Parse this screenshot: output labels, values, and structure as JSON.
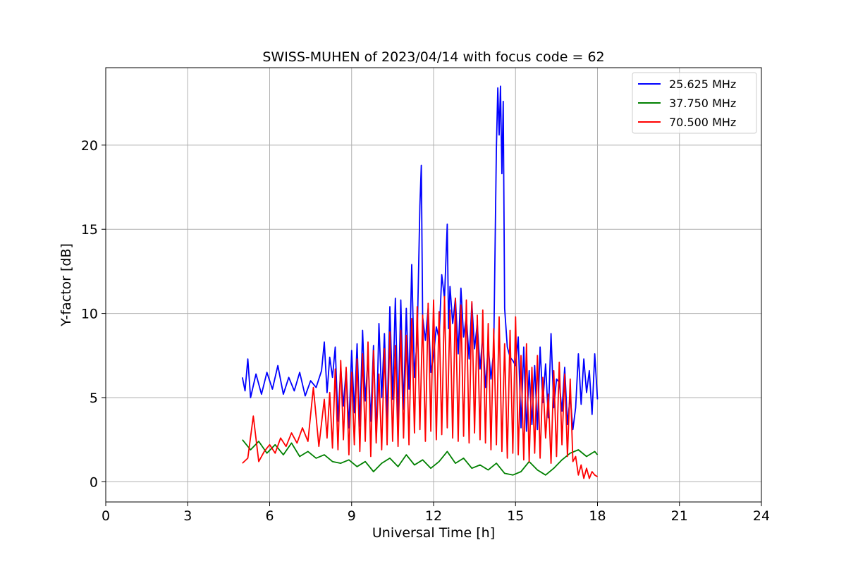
{
  "chart_data": {
    "type": "line",
    "title": "SWISS-MUHEN of 2023/04/14 with focus code = 62",
    "xlabel": "Universal Time [h]",
    "ylabel": "Y-factor [dB]",
    "xlim": [
      0,
      24
    ],
    "ylim": [
      -1.2,
      24.6
    ],
    "x_ticks": [
      0,
      3,
      6,
      9,
      12,
      15,
      18,
      21,
      24
    ],
    "y_ticks": [
      0,
      5,
      10,
      15,
      20
    ],
    "grid": true,
    "legend_position": "top-right",
    "series": [
      {
        "name": "25.625 MHz",
        "color": "#0000ff",
        "x": [
          5.0,
          5.1,
          5.2,
          5.3,
          5.5,
          5.7,
          5.9,
          6.1,
          6.3,
          6.5,
          6.7,
          6.9,
          7.1,
          7.3,
          7.5,
          7.7,
          7.9,
          8.0,
          8.1,
          8.2,
          8.3,
          8.4,
          8.5,
          8.6,
          8.7,
          8.8,
          8.9,
          9.0,
          9.1,
          9.2,
          9.3,
          9.4,
          9.5,
          9.6,
          9.7,
          9.8,
          9.9,
          10.0,
          10.1,
          10.2,
          10.3,
          10.4,
          10.5,
          10.6,
          10.7,
          10.8,
          10.9,
          11.0,
          11.1,
          11.2,
          11.3,
          11.4,
          11.5,
          11.55,
          11.6,
          11.7,
          11.8,
          11.9,
          12.0,
          12.1,
          12.2,
          12.3,
          12.4,
          12.5,
          12.55,
          12.6,
          12.7,
          12.8,
          12.9,
          13.0,
          13.1,
          13.2,
          13.3,
          13.4,
          13.5,
          13.6,
          13.7,
          13.8,
          13.9,
          14.0,
          14.1,
          14.2,
          14.3,
          14.35,
          14.4,
          14.45,
          14.5,
          14.55,
          14.6,
          14.7,
          14.8,
          14.9,
          15.0,
          15.1,
          15.2,
          15.3,
          15.4,
          15.5,
          15.6,
          15.7,
          15.8,
          15.9,
          16.0,
          16.1,
          16.2,
          16.3,
          16.4,
          16.5,
          16.6,
          16.7,
          16.8,
          16.9,
          17.0,
          17.1,
          17.2,
          17.3,
          17.4,
          17.5,
          17.6,
          17.7,
          17.8,
          17.9,
          18.0
        ],
        "values": [
          6.2,
          5.4,
          7.3,
          5.0,
          6.4,
          5.2,
          6.5,
          5.5,
          6.9,
          5.2,
          6.2,
          5.4,
          6.5,
          5.1,
          6.0,
          5.6,
          6.6,
          8.3,
          5.3,
          7.4,
          6.2,
          8.0,
          3.6,
          6.8,
          4.5,
          6.7,
          3.2,
          7.8,
          4.1,
          8.2,
          3.3,
          9.0,
          4.8,
          7.4,
          3.6,
          8.1,
          2.6,
          9.4,
          5.0,
          8.8,
          3.7,
          10.4,
          4.9,
          10.9,
          3.7,
          10.8,
          4.3,
          10.3,
          5.5,
          12.9,
          6.2,
          8.6,
          16.4,
          18.8,
          9.8,
          8.4,
          10.3,
          6.5,
          7.5,
          9.2,
          8.5,
          12.3,
          10.9,
          15.3,
          9.1,
          11.6,
          9.4,
          10.9,
          7.6,
          11.5,
          8.6,
          9.8,
          7.3,
          10.6,
          7.9,
          9.4,
          6.7,
          8.7,
          5.6,
          8.1,
          6.1,
          7.8,
          19.8,
          23.4,
          20.6,
          23.5,
          18.3,
          22.6,
          10.3,
          8.0,
          7.4,
          7.2,
          6.9,
          8.6,
          3.2,
          8.0,
          3.0,
          6.6,
          3.4,
          6.9,
          3.1,
          8.0,
          4.7,
          7.0,
          3.8,
          8.8,
          4.4,
          6.1,
          5.9,
          4.2,
          6.8,
          3.4,
          5.1,
          3.1,
          4.4,
          7.6,
          4.6,
          7.3,
          5.3,
          6.6,
          4.0,
          7.6,
          4.9
        ]
      },
      {
        "name": "37.750 MHz",
        "color": "#008000",
        "x": [
          5.0,
          5.3,
          5.6,
          5.9,
          6.2,
          6.5,
          6.8,
          7.1,
          7.4,
          7.7,
          8.0,
          8.3,
          8.6,
          8.9,
          9.2,
          9.5,
          9.8,
          10.1,
          10.4,
          10.7,
          11.0,
          11.3,
          11.6,
          11.9,
          12.2,
          12.5,
          12.8,
          13.1,
          13.4,
          13.7,
          14.0,
          14.3,
          14.6,
          14.9,
          15.2,
          15.5,
          15.8,
          16.1,
          16.4,
          16.7,
          17.0,
          17.3,
          17.6,
          17.9,
          18.0
        ],
        "values": [
          2.5,
          1.9,
          2.4,
          1.7,
          2.2,
          1.6,
          2.3,
          1.5,
          1.8,
          1.4,
          1.6,
          1.2,
          1.1,
          1.3,
          0.9,
          1.2,
          0.6,
          1.1,
          1.4,
          0.9,
          1.6,
          1.0,
          1.3,
          0.8,
          1.2,
          1.8,
          1.1,
          1.4,
          0.8,
          1.0,
          0.7,
          1.1,
          0.5,
          0.4,
          0.6,
          1.2,
          0.7,
          0.4,
          0.8,
          1.3,
          1.7,
          1.9,
          1.5,
          1.8,
          1.6
        ]
      },
      {
        "name": "70.500 MHz",
        "color": "#ff0000",
        "x": [
          5.0,
          5.2,
          5.4,
          5.6,
          5.8,
          6.0,
          6.2,
          6.4,
          6.6,
          6.8,
          7.0,
          7.2,
          7.4,
          7.6,
          7.8,
          8.0,
          8.1,
          8.2,
          8.3,
          8.4,
          8.5,
          8.6,
          8.7,
          8.8,
          8.9,
          9.0,
          9.1,
          9.2,
          9.3,
          9.4,
          9.5,
          9.6,
          9.7,
          9.8,
          9.9,
          10.0,
          10.1,
          10.2,
          10.3,
          10.4,
          10.5,
          10.6,
          10.7,
          10.8,
          10.9,
          11.0,
          11.1,
          11.2,
          11.3,
          11.4,
          11.5,
          11.6,
          11.7,
          11.8,
          11.9,
          12.0,
          12.1,
          12.2,
          12.3,
          12.4,
          12.5,
          12.6,
          12.7,
          12.8,
          12.9,
          13.0,
          13.1,
          13.2,
          13.3,
          13.4,
          13.5,
          13.6,
          13.7,
          13.8,
          13.9,
          14.0,
          14.1,
          14.2,
          14.3,
          14.4,
          14.5,
          14.6,
          14.7,
          14.8,
          14.9,
          15.0,
          15.1,
          15.2,
          15.3,
          15.4,
          15.5,
          15.6,
          15.7,
          15.8,
          15.9,
          16.0,
          16.1,
          16.2,
          16.3,
          16.4,
          16.5,
          16.6,
          16.7,
          16.8,
          16.9,
          17.0,
          17.1,
          17.2,
          17.3,
          17.4,
          17.5,
          17.6,
          17.7,
          17.8,
          17.9,
          18.0
        ],
        "values": [
          1.1,
          1.4,
          3.9,
          1.2,
          1.8,
          2.2,
          1.7,
          2.6,
          2.1,
          2.9,
          2.3,
          3.2,
          2.4,
          5.6,
          2.1,
          4.9,
          2.6,
          5.3,
          2.0,
          6.7,
          1.9,
          7.2,
          2.5,
          6.8,
          1.6,
          6.5,
          2.2,
          7.3,
          1.8,
          7.6,
          2.4,
          8.3,
          1.5,
          7.8,
          2.3,
          6.4,
          1.9,
          7.9,
          2.2,
          8.9,
          2.4,
          8.1,
          2.1,
          9.0,
          2.6,
          8.7,
          2.2,
          9.7,
          2.9,
          10.4,
          3.1,
          9.9,
          2.4,
          10.6,
          3.0,
          10.8,
          2.5,
          10.1,
          2.8,
          11.0,
          3.2,
          10.2,
          2.6,
          10.9,
          2.4,
          10.5,
          2.7,
          10.8,
          2.3,
          10.7,
          2.9,
          9.9,
          2.5,
          10.2,
          2.3,
          9.4,
          1.9,
          9.1,
          2.2,
          9.8,
          1.8,
          8.2,
          1.4,
          9.0,
          1.7,
          9.8,
          1.6,
          7.5,
          1.3,
          8.2,
          1.2,
          6.8,
          1.7,
          7.5,
          1.4,
          6.2,
          2.6,
          5.2,
          1.1,
          6.6,
          1.5,
          7.1,
          2.2,
          6.4,
          1.5,
          6.1,
          1.2,
          1.5,
          0.4,
          1.0,
          0.2,
          0.8,
          0.2,
          0.6,
          0.4,
          0.3
        ]
      }
    ]
  }
}
